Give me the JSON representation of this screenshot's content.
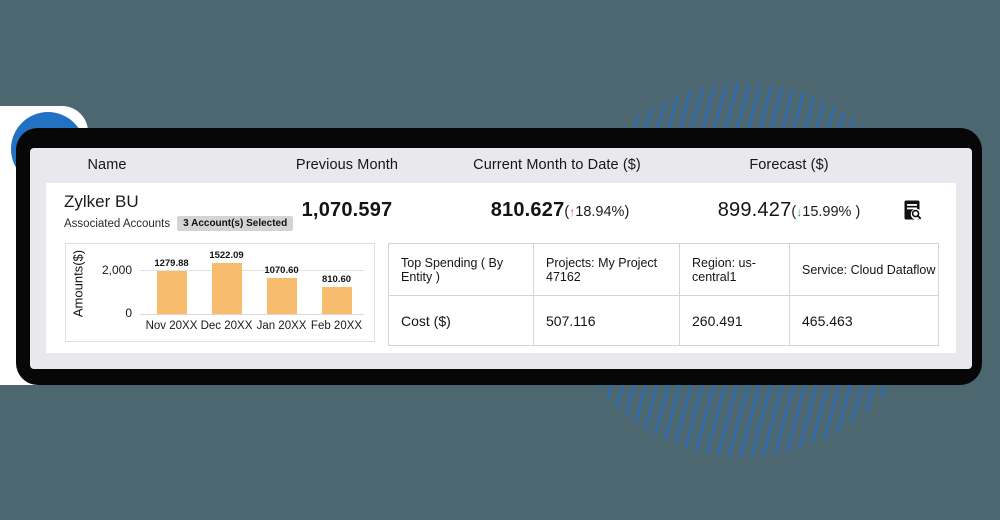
{
  "page": {
    "background": "#4C6770"
  },
  "decor": {
    "blue_circle_color": "#2271c3",
    "hatch_line_color": "#2e6bb0",
    "card_frame_color": "#070707",
    "card_bg_color": "#e9e9ed"
  },
  "header": {
    "columns": [
      "Name",
      "Previous Month",
      "Current Month to Date ($)",
      "Forecast ($)"
    ]
  },
  "row": {
    "name": "Zylker BU",
    "subtitle": "Associated Accounts",
    "badge": "3 Account(s) Selected",
    "previous_month": "1,070.597",
    "current_month": {
      "value": "810.627",
      "paren_open": "(",
      "arrow": "↑",
      "arrow_color": "#e2574c",
      "change": "18.94%",
      "paren_close": ")"
    },
    "forecast": {
      "value": "899.427",
      "paren_open": "(",
      "arrow": "↓",
      "arrow_color": "#2f9e3d",
      "change": "15.99%",
      "paren_close": " )"
    }
  },
  "chart_data": {
    "type": "bar",
    "title": "",
    "xlabel": "",
    "ylabel": "Amounts($)",
    "categories": [
      "Nov 20XX",
      "Dec 20XX",
      "Jan 20XX",
      "Feb 20XX"
    ],
    "values": [
      1279.88,
      1522.09,
      1070.6,
      810.6
    ],
    "data_labels": [
      "1279.88",
      "1522.09",
      "1070.60",
      "810.60"
    ],
    "yticks": [
      "2,000",
      "0"
    ],
    "ylim": [
      0,
      2000
    ],
    "grid": "horizontal",
    "legend": "none",
    "bar_color": "#f8bc6f"
  },
  "spending_table": {
    "header": [
      "Top Spending ( By Entity )",
      "Projects: My Project 47162",
      "Region: us-central1",
      "Service: Cloud Dataflow"
    ],
    "rows": [
      [
        "Cost ($)",
        "507.116",
        "260.491",
        "465.463"
      ]
    ]
  }
}
